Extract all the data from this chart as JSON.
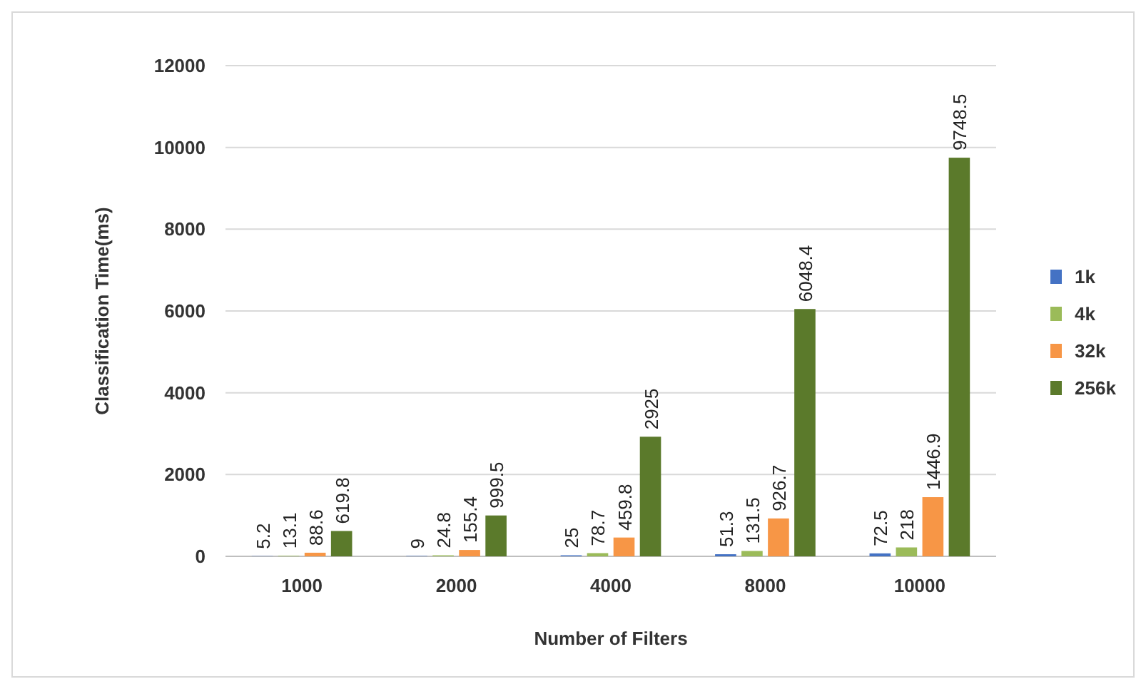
{
  "chart_data": {
    "type": "bar",
    "xlabel": "Number of Filters",
    "ylabel": "Classification Time(ms)",
    "categories": [
      "1000",
      "2000",
      "4000",
      "8000",
      "10000"
    ],
    "series": [
      {
        "name": "1k",
        "color": "#4472c4",
        "values": [
          5.2,
          9,
          25,
          51.3,
          72.5
        ]
      },
      {
        "name": "4k",
        "color": "#9bbb59",
        "values": [
          13.1,
          24.8,
          78.7,
          131.5,
          218
        ]
      },
      {
        "name": "32k",
        "color": "#f79646",
        "values": [
          88.6,
          155.4,
          459.8,
          926.7,
          1446.9
        ]
      },
      {
        "name": "256k",
        "color": "#5b7a2b",
        "values": [
          619.8,
          999.5,
          2925,
          6048.4,
          9748.5
        ]
      }
    ],
    "ylim": [
      0,
      12000
    ],
    "yticks": [
      0,
      2000,
      4000,
      6000,
      8000,
      10000,
      12000
    ],
    "grid": "y",
    "legend": "right",
    "data_labels": true
  }
}
